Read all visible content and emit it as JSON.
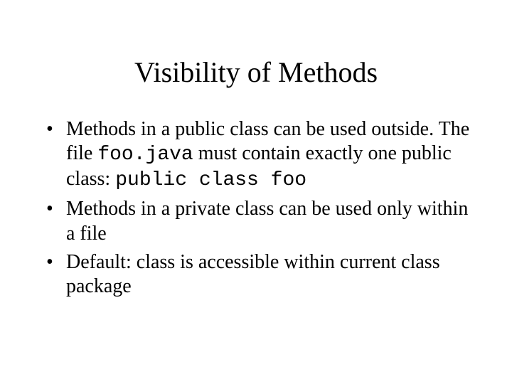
{
  "slide": {
    "title": "Visibility of Methods",
    "bullets": [
      {
        "pre1": "Methods in a public class can be used outside. The file ",
        "code1": "foo.java",
        "mid1": " must contain exactly one public class: ",
        "code2": "public class foo"
      },
      {
        "text": "Methods in a private class can be used only within a file"
      },
      {
        "text": "Default: class is accessible within current class package"
      }
    ]
  },
  "style": {
    "background_color": "#ffffff",
    "text_color": "#000000",
    "title_fontsize": 40,
    "body_fontsize": 28,
    "body_font": "Times New Roman",
    "code_font": "Courier New"
  }
}
